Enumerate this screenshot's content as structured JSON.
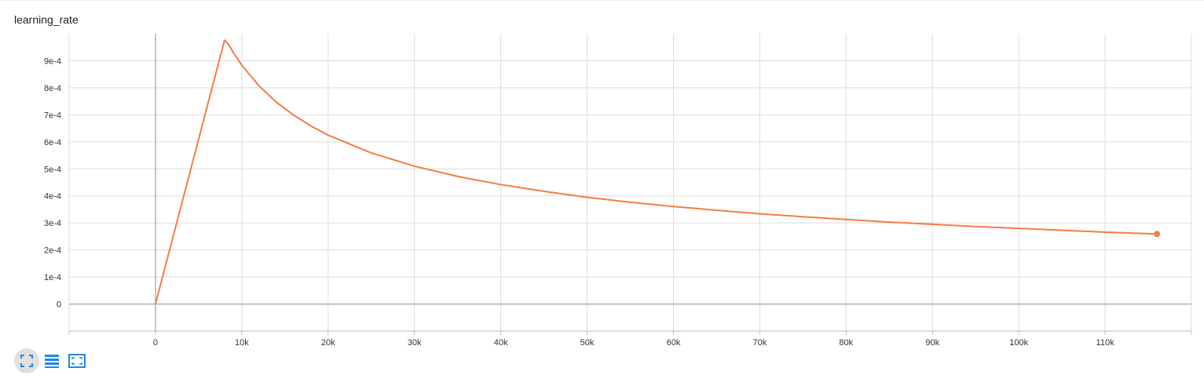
{
  "chart_data": {
    "type": "line",
    "title": "learning_rate",
    "xlabel": "",
    "ylabel": "",
    "xlim": [
      -10000,
      120000
    ],
    "ylim": [
      -0.0001,
      0.001
    ],
    "x_ticks": [
      0,
      10000,
      20000,
      30000,
      40000,
      50000,
      60000,
      70000,
      80000,
      90000,
      100000,
      110000
    ],
    "x_tick_labels": [
      "0",
      "10k",
      "20k",
      "30k",
      "40k",
      "50k",
      "60k",
      "70k",
      "80k",
      "90k",
      "100k",
      "110k"
    ],
    "y_ticks": [
      0,
      0.0001,
      0.0002,
      0.0003,
      0.0004,
      0.0005,
      0.0006,
      0.0007,
      0.0008,
      0.0009
    ],
    "y_tick_labels": [
      "0",
      "1e-4",
      "2e-4",
      "3e-4",
      "4e-4",
      "5e-4",
      "6e-4",
      "7e-4",
      "8e-4",
      "9e-4"
    ],
    "grid": true,
    "color": "#f57c45",
    "series": [
      {
        "x": [
          0,
          1000,
          2000,
          3000,
          4000,
          5000,
          6000,
          7000,
          8000,
          8500,
          9000,
          10000,
          12000,
          14000,
          16000,
          18000,
          20000,
          25000,
          30000,
          35000,
          40000,
          45000,
          50000,
          55000,
          60000,
          65000,
          70000,
          75000,
          80000,
          85000,
          90000,
          95000,
          100000,
          105000,
          110000,
          116000
        ],
        "y": [
          0,
          0.000122,
          0.000244,
          0.000366,
          0.000488,
          0.00061,
          0.000732,
          0.000854,
          0.000976,
          0.000959,
          0.000931,
          0.000884,
          0.000807,
          0.000747,
          0.000699,
          0.000659,
          0.000625,
          0.000559,
          0.00051,
          0.000472,
          0.000442,
          0.000417,
          0.000395,
          0.000377,
          0.000361,
          0.000347,
          0.000334,
          0.000323,
          0.000313,
          0.000303,
          0.000295,
          0.000287,
          0.00028,
          0.000273,
          0.000266,
          0.000259
        ]
      }
    ]
  },
  "toolbar": {
    "buttons": [
      "fit-domain",
      "toggle-log",
      "zoom-reset"
    ]
  }
}
